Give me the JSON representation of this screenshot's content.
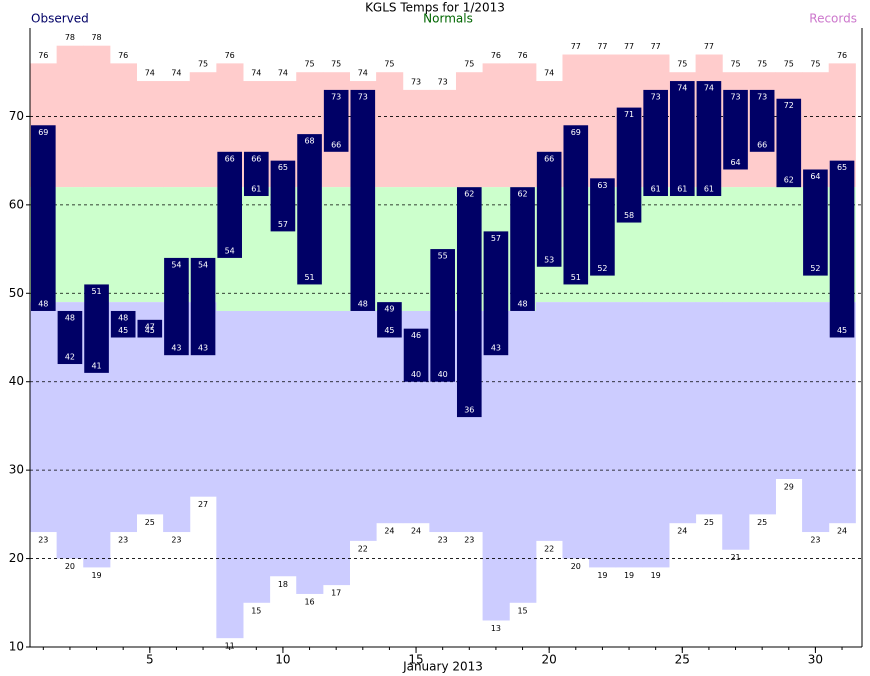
{
  "chart_data": {
    "type": "temperature-band",
    "title": "KGLS Temps for 1/2013",
    "x_label": "January 2013",
    "days": [
      1,
      2,
      3,
      4,
      5,
      6,
      7,
      8,
      9,
      10,
      11,
      12,
      13,
      14,
      15,
      16,
      17,
      18,
      19,
      20,
      21,
      22,
      23,
      24,
      25,
      26,
      27,
      28,
      29,
      30,
      31
    ],
    "observed": {
      "label": "Observed",
      "color": "#000066",
      "text_color": "#ffffff",
      "high": [
        69,
        48,
        51,
        48,
        47,
        54,
        54,
        66,
        66,
        65,
        68,
        73,
        73,
        49,
        46,
        55,
        62,
        57,
        62,
        66,
        69,
        63,
        71,
        73,
        74,
        74,
        73,
        73,
        72,
        64,
        65
      ],
      "low": [
        48,
        42,
        41,
        45,
        45,
        43,
        43,
        54,
        61,
        57,
        51,
        66,
        48,
        45,
        40,
        40,
        36,
        43,
        48,
        53,
        51,
        52,
        58,
        61,
        61,
        61,
        64,
        66,
        62,
        52,
        45
      ]
    },
    "normals": {
      "label": "Normals",
      "color": "#006600",
      "fill": "#ccffcc",
      "high": [
        62,
        62,
        62,
        62,
        62,
        62,
        62,
        62,
        62,
        62,
        62,
        62,
        62,
        62,
        62,
        62,
        62,
        62,
        62,
        62,
        62,
        62,
        62,
        62,
        62,
        62,
        62,
        62,
        62,
        62,
        62
      ],
      "low": [
        49,
        49,
        49,
        49,
        49,
        49,
        49,
        48,
        48,
        48,
        48,
        48,
        48,
        48,
        48,
        48,
        48,
        48,
        48,
        49,
        49,
        49,
        49,
        49,
        49,
        49,
        49,
        49,
        49,
        49,
        49
      ]
    },
    "records": {
      "label": "Records",
      "color": "#cc77cc",
      "high_fill": "#ffcccc",
      "low_fill": "#ccccff",
      "high": [
        76,
        78,
        78,
        76,
        74,
        74,
        75,
        76,
        74,
        74,
        75,
        75,
        74,
        75,
        73,
        73,
        75,
        76,
        76,
        74,
        77,
        77,
        77,
        77,
        75,
        77,
        75,
        75,
        75,
        75,
        76
      ],
      "low": [
        23,
        20,
        19,
        23,
        25,
        23,
        27,
        11,
        15,
        18,
        16,
        17,
        22,
        24,
        24,
        23,
        23,
        13,
        15,
        22,
        20,
        19,
        19,
        19,
        24,
        25,
        21,
        25,
        29,
        23,
        24
      ]
    },
    "xlim": [
      0.5,
      31.75
    ],
    "xticks": [
      5,
      10,
      15,
      20,
      25,
      30
    ],
    "ylim": [
      10,
      80
    ],
    "yticks": [
      10,
      20,
      30,
      40,
      50,
      60,
      70
    ],
    "grid": true
  }
}
